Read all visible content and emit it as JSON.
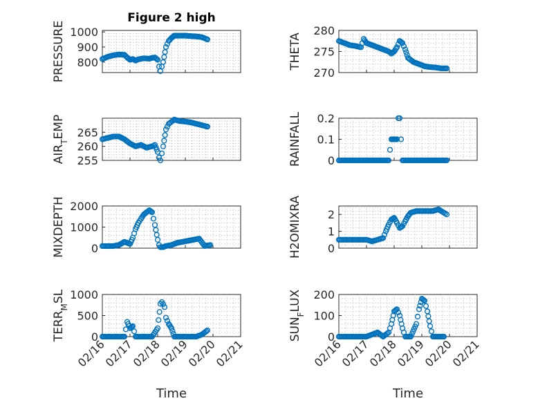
{
  "title": "Figure 2 high",
  "shared_xlabel": "Time",
  "colors": {
    "marker": "#0072BD",
    "axes": "#262626",
    "grid": "#bdbdbd"
  },
  "chart_data": [
    {
      "type": "scatter",
      "title": "Figure 2 high",
      "ylabel": "PRESSURE",
      "xlabel": "",
      "ylim": [
        730,
        1010
      ],
      "yticks": [
        800,
        900,
        1000
      ],
      "ytick_labels": [
        "800",
        "900",
        "1000"
      ],
      "xlim": [
        "02/16",
        "02/21"
      ],
      "xticks": [],
      "grid": true,
      "x": [
        16.0,
        16.2,
        16.4,
        16.6,
        16.8,
        16.9,
        17.0,
        17.1,
        17.2,
        17.3,
        17.5,
        17.7,
        17.8,
        17.9,
        18.0,
        18.05,
        18.1,
        18.2,
        18.3,
        18.4,
        18.5,
        18.6,
        18.8,
        19.0,
        19.2,
        19.4,
        19.6,
        19.8
      ],
      "y": [
        820,
        835,
        845,
        850,
        848,
        830,
        815,
        820,
        810,
        818,
        825,
        822,
        828,
        830,
        815,
        770,
        740,
        800,
        900,
        940,
        960,
        975,
        975,
        975,
        972,
        970,
        965,
        950
      ]
    },
    {
      "type": "scatter",
      "title": "",
      "ylabel": "THETA",
      "xlabel": "",
      "ylim": [
        270,
        280
      ],
      "yticks": [
        270,
        275,
        280
      ],
      "ytick_labels": [
        "270",
        "275",
        "280"
      ],
      "xlim": [
        "02/16",
        "02/21"
      ],
      "xticks": [],
      "grid": true,
      "x": [
        16.0,
        16.2,
        16.4,
        16.6,
        16.8,
        16.9,
        17.0,
        17.2,
        17.4,
        17.6,
        17.8,
        17.9,
        18.0,
        18.1,
        18.2,
        18.3,
        18.4,
        18.5,
        18.7,
        18.9,
        19.1,
        19.3,
        19.5,
        19.7,
        19.9
      ],
      "y": [
        277.5,
        277.0,
        276.5,
        276.3,
        276.0,
        278.0,
        277.0,
        276.5,
        276.0,
        275.5,
        275.0,
        274.5,
        275.0,
        276.0,
        277.5,
        277.0,
        275.5,
        273.5,
        272.5,
        272.0,
        271.5,
        271.3,
        271.2,
        271.0,
        271.0
      ]
    },
    {
      "type": "scatter",
      "title": "",
      "ylabel_main": "AIR",
      "ylabel_sub": "T",
      "ylabel_rest": "EMP",
      "xlabel": "",
      "ylim": [
        255,
        270
      ],
      "yticks": [
        255,
        260,
        265
      ],
      "ytick_labels": [
        "255",
        "260",
        "265"
      ],
      "xlim": [
        "02/16",
        "02/21"
      ],
      "xticks": [],
      "grid": true,
      "x": [
        16.0,
        16.2,
        16.4,
        16.6,
        16.8,
        17.0,
        17.2,
        17.4,
        17.6,
        17.8,
        17.9,
        18.0,
        18.05,
        18.1,
        18.2,
        18.3,
        18.4,
        18.6,
        18.8,
        19.0,
        19.2,
        19.4,
        19.6,
        19.8
      ],
      "y": [
        262.5,
        263.0,
        263.5,
        263.5,
        262.5,
        261.0,
        260.0,
        260.5,
        259.5,
        260.0,
        260.5,
        258.0,
        256.0,
        255.0,
        260.0,
        266.0,
        268.0,
        269.5,
        269.0,
        268.8,
        268.5,
        268.0,
        267.5,
        267.0
      ]
    },
    {
      "type": "scatter",
      "title": "",
      "ylabel": "RAINFALL",
      "xlabel": "",
      "ylim": [
        0,
        0.2
      ],
      "yticks": [
        0,
        0.1,
        0.2
      ],
      "ytick_labels": [
        "0",
        "0.1",
        "0.2"
      ],
      "xlim": [
        "02/16",
        "02/21"
      ],
      "xticks": [],
      "grid": true,
      "x": [
        16.0,
        16.2,
        16.4,
        16.6,
        16.8,
        17.0,
        17.2,
        17.4,
        17.6,
        17.8,
        17.9,
        18.0,
        18.1,
        18.15,
        18.2,
        18.25,
        18.3,
        18.5,
        18.7,
        18.9,
        19.1,
        19.3,
        19.5,
        19.7,
        19.9
      ],
      "y": [
        0,
        0,
        0,
        0,
        0,
        0,
        0,
        0,
        0,
        0,
        0.1,
        0.1,
        0.1,
        0.2,
        0.2,
        0.1,
        0,
        0,
        0,
        0,
        0,
        0,
        0,
        0,
        0
      ]
    },
    {
      "type": "scatter",
      "title": "",
      "ylabel": "MIXDEPTH",
      "xlabel": "",
      "ylim": [
        0,
        2000
      ],
      "yticks": [
        0,
        1000,
        2000
      ],
      "ytick_labels": [
        "0",
        "1000",
        "2000"
      ],
      "xlim": [
        "02/16",
        "02/21"
      ],
      "xticks": [],
      "grid": true,
      "x": [
        16.0,
        16.2,
        16.4,
        16.6,
        16.8,
        17.0,
        17.1,
        17.2,
        17.3,
        17.4,
        17.5,
        17.6,
        17.7,
        17.8,
        17.9,
        18.0,
        18.05,
        18.1,
        18.2,
        18.3,
        18.5,
        18.7,
        18.9,
        19.1,
        19.3,
        19.5,
        19.7,
        19.9
      ],
      "y": [
        100,
        100,
        100,
        150,
        300,
        200,
        500,
        900,
        1200,
        1400,
        1600,
        1700,
        1800,
        1700,
        1100,
        400,
        150,
        50,
        50,
        100,
        150,
        250,
        300,
        350,
        400,
        450,
        100,
        150
      ]
    },
    {
      "type": "scatter",
      "title": "",
      "ylabel": "H2OMIXRA",
      "xlabel": "",
      "ylim": [
        0,
        2.5
      ],
      "yticks": [
        0,
        1,
        2
      ],
      "ytick_labels": [
        "0",
        "1",
        "2"
      ],
      "xlim": [
        "02/16",
        "02/21"
      ],
      "xticks": [],
      "grid": true,
      "x": [
        16.0,
        16.2,
        16.4,
        16.6,
        16.8,
        17.0,
        17.2,
        17.4,
        17.6,
        17.7,
        17.8,
        17.9,
        18.0,
        18.1,
        18.2,
        18.3,
        18.4,
        18.5,
        18.6,
        18.8,
        19.0,
        19.2,
        19.4,
        19.6,
        19.8,
        19.9
      ],
      "y": [
        0.5,
        0.5,
        0.5,
        0.5,
        0.5,
        0.5,
        0.4,
        0.5,
        0.6,
        1.0,
        1.4,
        1.7,
        1.8,
        1.5,
        1.2,
        1.3,
        1.6,
        1.9,
        2.1,
        2.2,
        2.2,
        2.2,
        2.2,
        2.3,
        2.1,
        2.0
      ]
    },
    {
      "type": "scatter",
      "title": "",
      "ylabel_main": "TERR",
      "ylabel_sub": "M",
      "ylabel_rest": "SL",
      "xlabel": "Time",
      "ylim": [
        0,
        1000
      ],
      "yticks": [
        0,
        500,
        1000
      ],
      "ytick_labels": [
        "0",
        "500",
        "1000"
      ],
      "xlim": [
        "02/16",
        "02/21"
      ],
      "xticks": [
        "02/16",
        "02/17",
        "02/18",
        "02/19",
        "02/20",
        "02/21"
      ],
      "grid": true,
      "x": [
        16.0,
        16.2,
        16.4,
        16.6,
        16.8,
        16.9,
        17.0,
        17.1,
        17.2,
        17.4,
        17.6,
        17.8,
        18.0,
        18.1,
        18.15,
        18.2,
        18.25,
        18.3,
        18.4,
        18.5,
        18.6,
        18.8,
        19.0,
        19.2,
        19.4,
        19.6,
        19.8
      ],
      "y": [
        0,
        0,
        0,
        0,
        0,
        350,
        200,
        250,
        0,
        0,
        0,
        0,
        200,
        780,
        820,
        770,
        700,
        450,
        300,
        200,
        0,
        0,
        0,
        0,
        0,
        50,
        150
      ]
    },
    {
      "type": "scatter",
      "title": "",
      "ylabel_main": "SUN",
      "ylabel_sub": "F",
      "ylabel_rest": "LUX",
      "xlabel": "Time",
      "ylim": [
        0,
        200
      ],
      "yticks": [
        0,
        100,
        200
      ],
      "ytick_labels": [
        "0",
        "100",
        "200"
      ],
      "xlim": [
        "02/16",
        "02/21"
      ],
      "xticks": [
        "02/16",
        "02/17",
        "02/18",
        "02/19",
        "02/20",
        "02/21"
      ],
      "grid": true,
      "x": [
        16.0,
        16.2,
        16.4,
        16.6,
        16.8,
        17.0,
        17.2,
        17.4,
        17.6,
        17.8,
        17.9,
        18.0,
        18.1,
        18.2,
        18.3,
        18.4,
        18.6,
        18.8,
        18.9,
        19.0,
        19.1,
        19.2,
        19.3,
        19.4,
        19.6,
        19.8
      ],
      "y": [
        0,
        0,
        0,
        0,
        0,
        0,
        10,
        20,
        0,
        20,
        60,
        120,
        130,
        100,
        40,
        0,
        0,
        60,
        130,
        180,
        170,
        120,
        50,
        0,
        0,
        0
      ]
    }
  ]
}
